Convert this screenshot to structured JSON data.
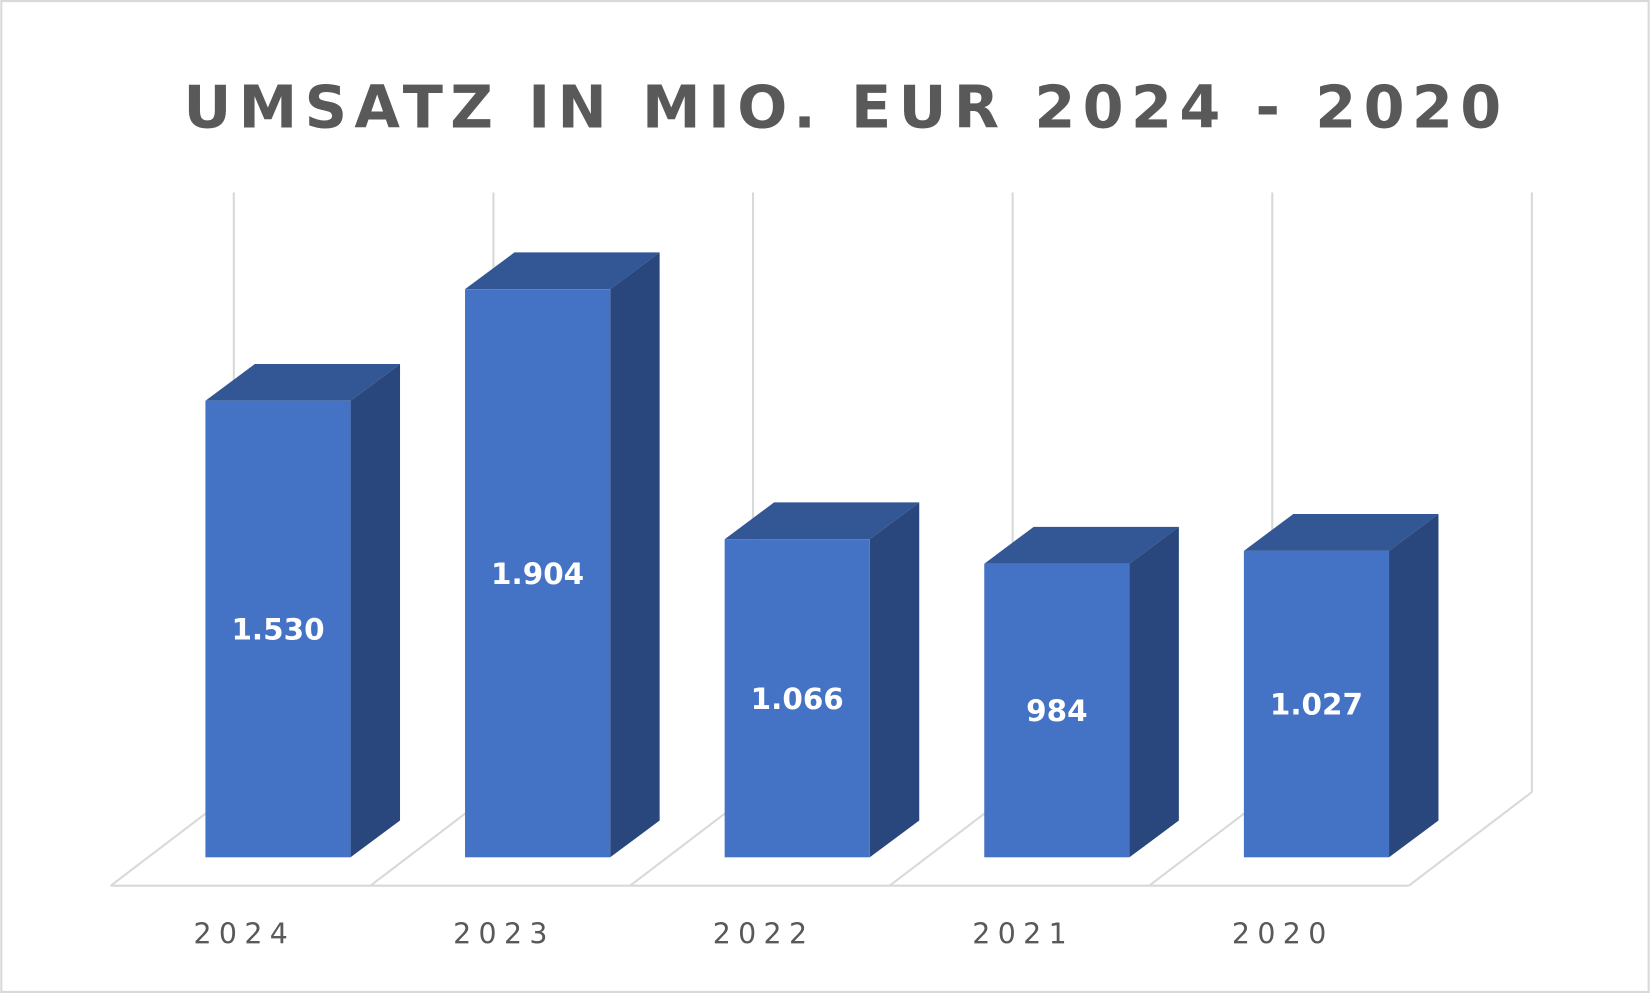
{
  "chart_data": {
    "type": "bar",
    "style": "3d-column",
    "title": "UMSATZ IN MIO. EUR 2024 - 2020",
    "categories": [
      "2024",
      "2023",
      "2022",
      "2021",
      "2020"
    ],
    "values": [
      1530,
      1904,
      1066,
      984,
      1027
    ],
    "data_labels": [
      "1.530",
      "1.904",
      "1.066",
      "984",
      "1.027"
    ],
    "xlabel": "",
    "ylabel": "",
    "ylim": [
      0,
      2100
    ],
    "grid": "vertical",
    "legend": "none",
    "colors": {
      "front": "#4472C4",
      "top": "#335694",
      "side": "#29477D",
      "grid": "#D9D9D9",
      "text": "#595959"
    }
  }
}
